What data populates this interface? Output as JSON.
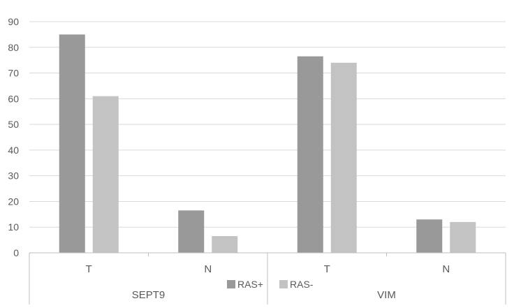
{
  "chart_data": {
    "type": "bar",
    "y_axis": {
      "min": 0,
      "max": 90,
      "step": 10,
      "tick_labels": [
        "0",
        "10",
        "20",
        "30",
        "40",
        "50",
        "60",
        "70",
        "80",
        "90"
      ]
    },
    "grid": true,
    "legend_position": "bottom",
    "groups": [
      {
        "name": "SEPT9",
        "categories": [
          "T",
          "N"
        ]
      },
      {
        "name": "VIM",
        "categories": [
          "T",
          "N"
        ]
      }
    ],
    "categories": [
      "T",
      "N",
      "T",
      "N"
    ],
    "series": [
      {
        "name": "RAS+",
        "color": "#999999",
        "values": [
          85,
          16.5,
          76.5,
          13
        ]
      },
      {
        "name": "RAS-",
        "color": "#c3c3c3",
        "values": [
          61,
          6.5,
          74,
          12
        ]
      }
    ]
  }
}
